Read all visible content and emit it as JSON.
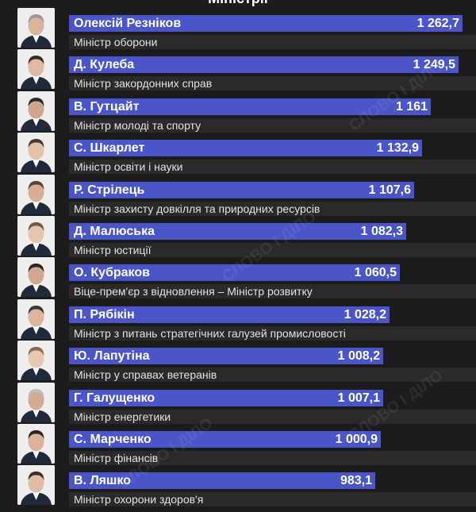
{
  "header": {
    "title": "Міністрії"
  },
  "watermark": {
    "text": "СЛОВО І ДІЛО"
  },
  "chart_data": {
    "type": "bar",
    "orientation": "horizontal",
    "title": "Міністрії",
    "categories": [
      "Олексій Резніков",
      "Д. Кулеба",
      "В. Гутцайт",
      "С. Шкарлет",
      "Р. Стрілець",
      "Д. Малюська",
      "О. Кубраков",
      "П. Рябікін",
      "Ю. Лапутіна",
      "Г. Галущенко",
      "С. Марченко",
      "В. Ляшко"
    ],
    "values": [
      1262.7,
      1249.5,
      1161,
      1132.9,
      1107.6,
      1082.3,
      1060.5,
      1028.2,
      1008.2,
      1007.1,
      1000.9,
      983.1
    ],
    "value_labels": [
      "1 262,7",
      "1 249,5",
      "1 161",
      "1 132,9",
      "1 107,6",
      "1 082,3",
      "1 060,5",
      "1 028,2",
      "1 008,2",
      "1 007,1",
      "1 000,9",
      "983,1"
    ],
    "roles": [
      "Міністр оборони",
      "Міністр закордонних справ",
      "Міністр молоді та спорту",
      "Міністр освіти і науки",
      "Міністр захисту довкілля та природних ресурсів",
      "Міністр юстиції",
      "Віце-прем'єр з відновлення – Міністр розвитку",
      "Міністр з питань стратегічних галузей промисловості",
      "Міністр у справах ветеранів",
      "Міністр енергетики",
      "Міністр фінансів",
      "Міністр охорони здоров'я"
    ],
    "bar_color": "#4a55c9",
    "xlim": [
      0,
      1270
    ],
    "grid": false,
    "legend": "none"
  }
}
